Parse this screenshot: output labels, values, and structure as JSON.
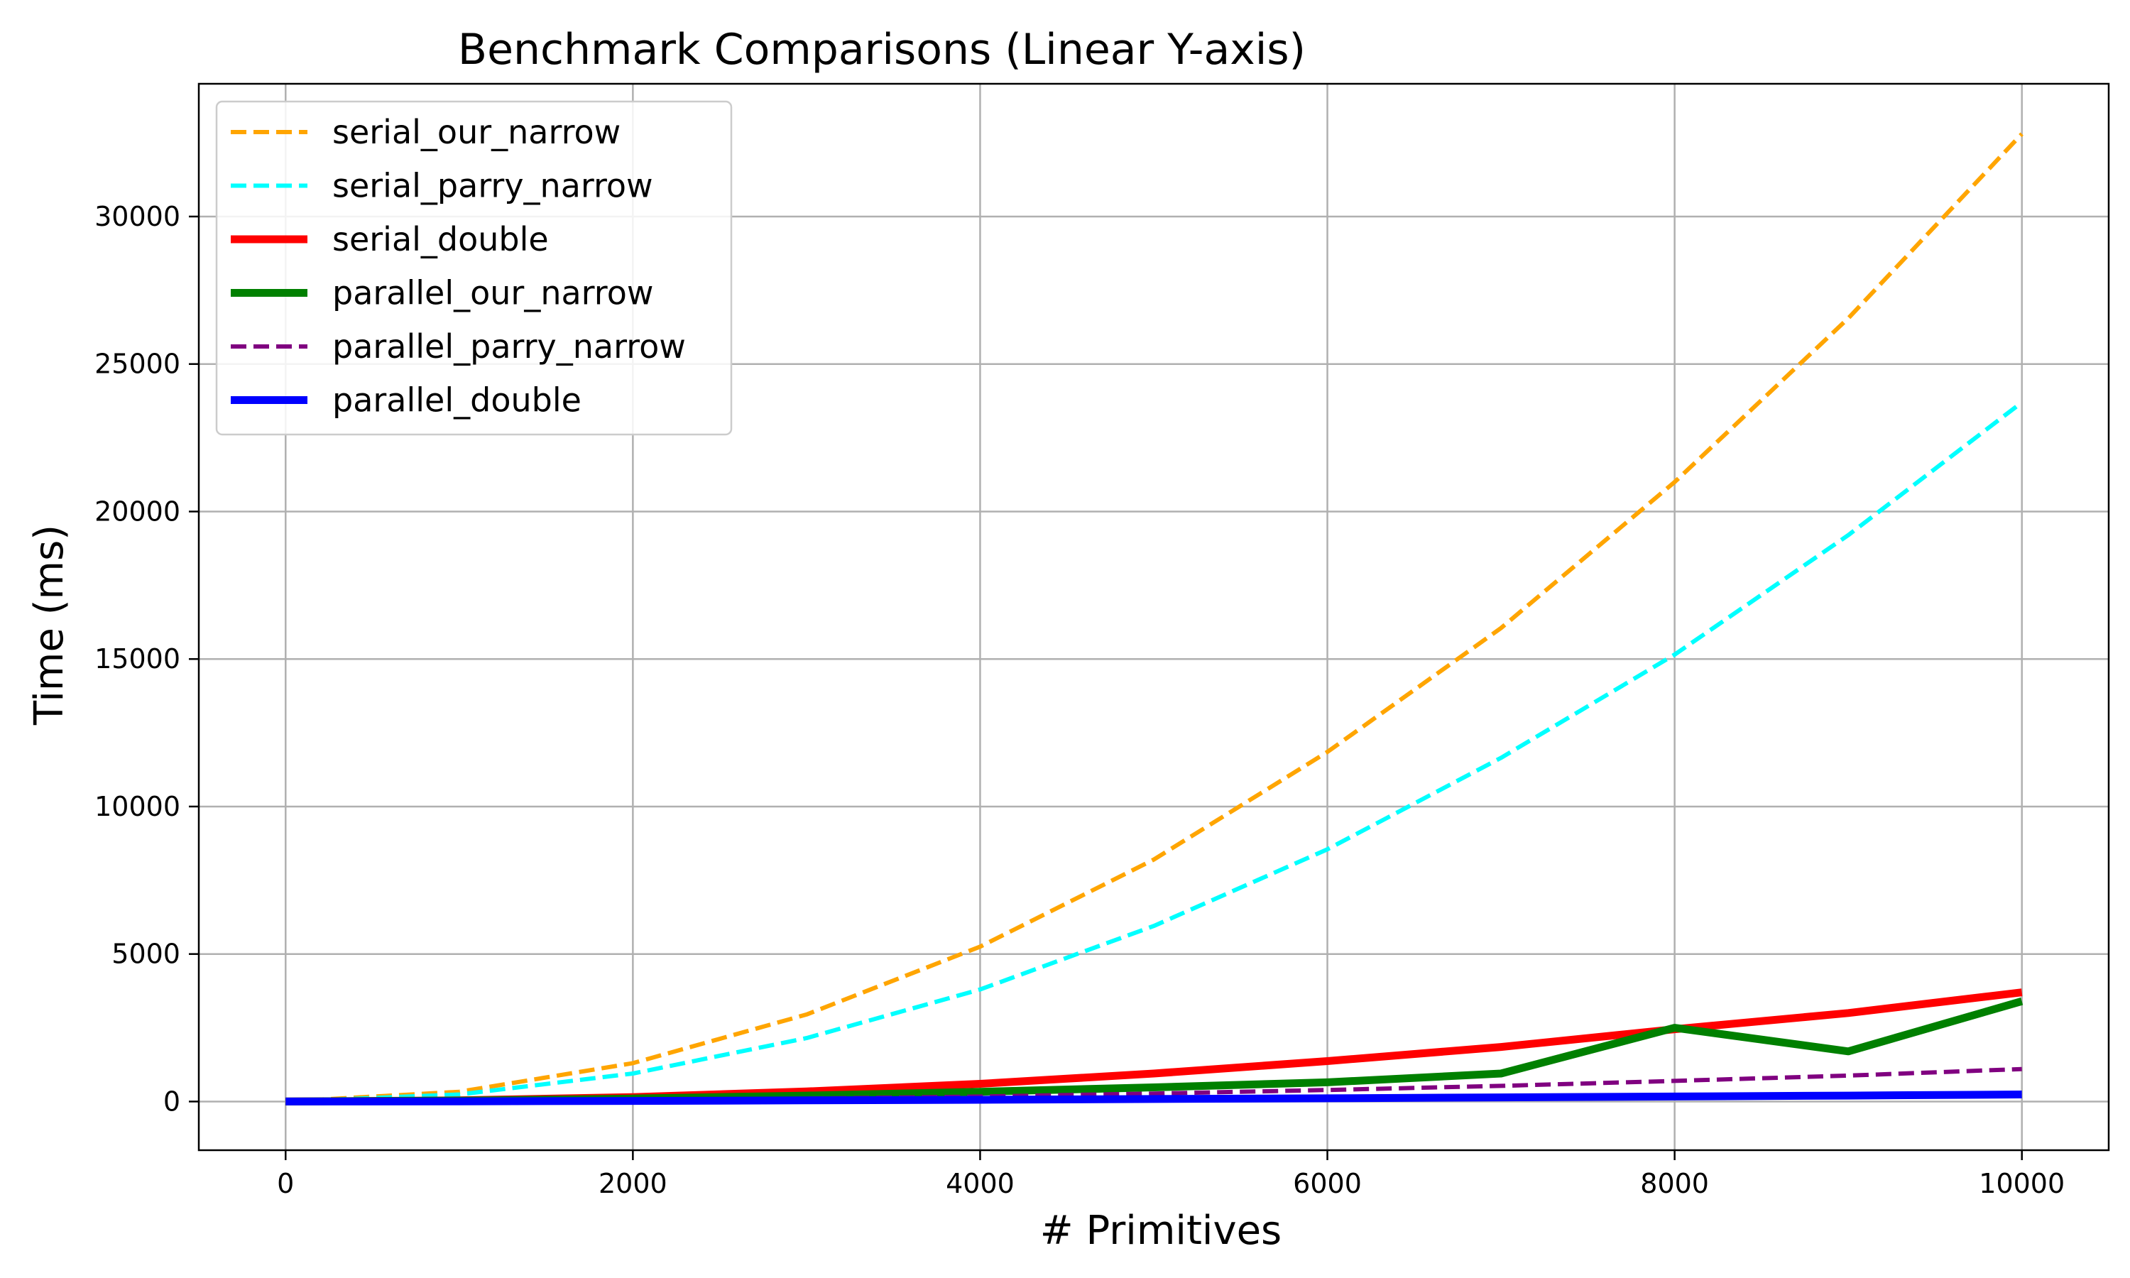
{
  "chart_data": {
    "type": "line",
    "title": "Benchmark Comparisons (Linear Y-axis)",
    "xlabel": "# Primitives",
    "ylabel": "Time (ms)",
    "xlim": [
      -500,
      10500
    ],
    "ylim": [
      -1650,
      34500
    ],
    "xticks": [
      0,
      2000,
      4000,
      6000,
      8000,
      10000
    ],
    "yticks": [
      0,
      5000,
      10000,
      15000,
      20000,
      25000,
      30000
    ],
    "grid": true,
    "legend_position": "top-left",
    "x": [
      0,
      1000,
      2000,
      3000,
      4000,
      5000,
      6000,
      7000,
      8000,
      9000,
      10000
    ],
    "series": [
      {
        "name": "serial_our_narrow",
        "color": "#FFA500",
        "style": "dashed",
        "width": 6,
        "values": [
          0,
          330,
          1300,
          2950,
          5250,
          8200,
          11850,
          16050,
          21000,
          26550,
          32800
        ]
      },
      {
        "name": "serial_parry_narrow",
        "color": "#00FFFF",
        "style": "dashed",
        "width": 6,
        "values": [
          0,
          240,
          950,
          2150,
          3800,
          5950,
          8550,
          11650,
          15150,
          19200,
          23700
        ]
      },
      {
        "name": "serial_double",
        "color": "#FF0000",
        "style": "solid",
        "width": 11,
        "values": [
          0,
          40,
          150,
          340,
          600,
          950,
          1370,
          1850,
          2450,
          3000,
          3700
        ]
      },
      {
        "name": "parallel_our_narrow",
        "color": "#008000",
        "style": "solid",
        "width": 11,
        "values": [
          0,
          30,
          100,
          200,
          330,
          480,
          650,
          950,
          2500,
          1700,
          3400
        ]
      },
      {
        "name": "parallel_parry_narrow",
        "color": "#800080",
        "style": "dashed",
        "width": 6,
        "values": [
          0,
          10,
          45,
          100,
          170,
          270,
          390,
          530,
          700,
          880,
          1100
        ]
      },
      {
        "name": "parallel_double",
        "color": "#0000FF",
        "style": "solid",
        "width": 11,
        "values": [
          0,
          5,
          20,
          40,
          60,
          85,
          110,
          140,
          170,
          200,
          240
        ]
      }
    ]
  }
}
